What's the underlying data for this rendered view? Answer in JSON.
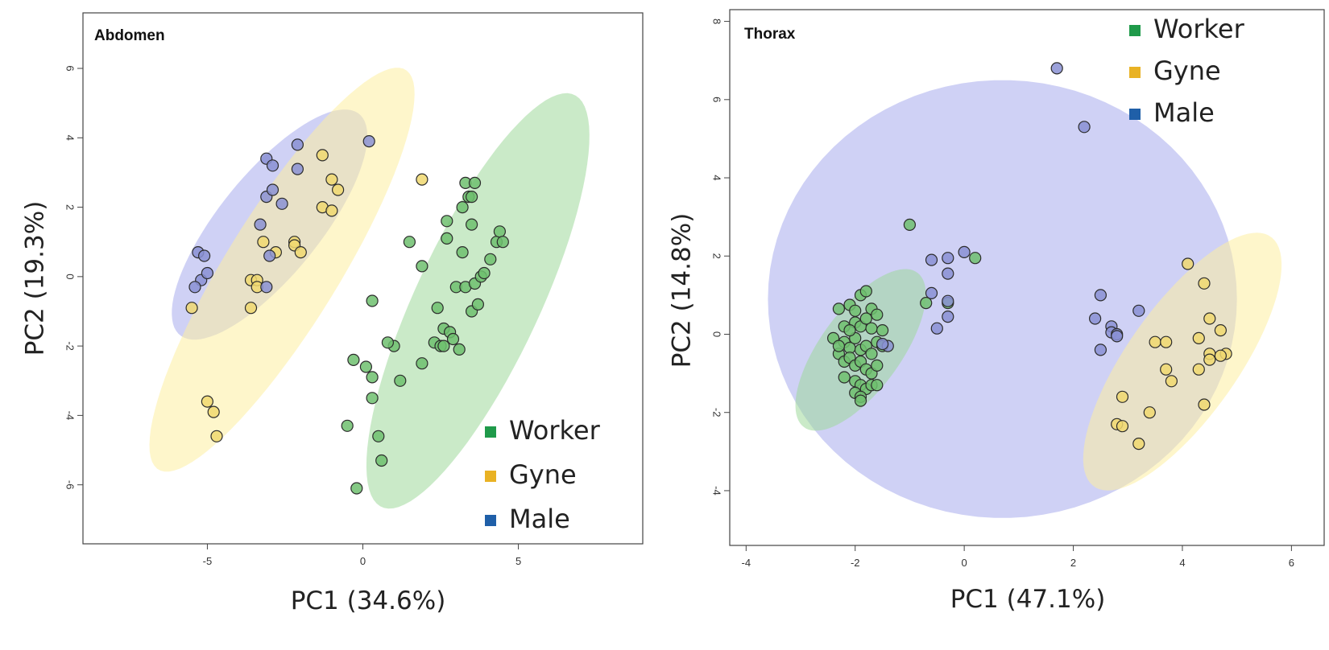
{
  "chart_data": [
    {
      "type": "scatter",
      "title": "Abdomen",
      "xlabel": "PC1 (34.6%)",
      "ylabel": "PC2 (19.3%)",
      "xlim": [
        -9.0,
        9.0
      ],
      "ylim": [
        -7.7,
        7.6
      ],
      "xticks": [
        -5,
        0,
        5
      ],
      "yticks": [
        -6,
        -4,
        -2,
        0,
        2,
        4,
        6
      ],
      "legend_position": "bottom-right",
      "ellipses": [
        {
          "series": "Male",
          "cx": -3.0,
          "cy": 1.5,
          "a": 4.3,
          "b": 1.55,
          "angle_deg": 47
        },
        {
          "series": "Gyne",
          "cx": -2.6,
          "cy": 0.2,
          "a": 7.0,
          "b": 1.75,
          "angle_deg": 55
        },
        {
          "series": "Worker",
          "cx": 3.7,
          "cy": -0.7,
          "a": 6.7,
          "b": 1.95,
          "angle_deg": 62
        }
      ],
      "series": [
        {
          "name": "Worker",
          "color": "#2aa84a",
          "fill": "#6fbf6f",
          "points": [
            [
              -0.2,
              -6.1
            ],
            [
              0.6,
              -5.3
            ],
            [
              0.5,
              -4.6
            ],
            [
              -0.5,
              -4.3
            ],
            [
              0.3,
              -3.5
            ],
            [
              1.2,
              -3.0
            ],
            [
              0.3,
              -2.9
            ],
            [
              0.1,
              -2.6
            ],
            [
              -0.3,
              -2.4
            ],
            [
              1.0,
              -2.0
            ],
            [
              0.8,
              -1.9
            ],
            [
              1.9,
              -2.5
            ],
            [
              2.3,
              -1.9
            ],
            [
              2.5,
              -2.0
            ],
            [
              2.6,
              -2.0
            ],
            [
              2.6,
              -1.5
            ],
            [
              2.8,
              -1.6
            ],
            [
              2.9,
              -1.8
            ],
            [
              3.1,
              -2.1
            ],
            [
              2.4,
              -0.9
            ],
            [
              3.0,
              -0.3
            ],
            [
              3.3,
              -0.3
            ],
            [
              3.5,
              -1.0
            ],
            [
              3.7,
              -0.8
            ],
            [
              3.6,
              -0.2
            ],
            [
              3.8,
              0.0
            ],
            [
              3.9,
              0.1
            ],
            [
              3.2,
              0.7
            ],
            [
              4.1,
              0.5
            ],
            [
              4.3,
              1.0
            ],
            [
              4.4,
              1.3
            ],
            [
              4.5,
              1.0
            ],
            [
              3.5,
              1.5
            ],
            [
              2.7,
              1.6
            ],
            [
              2.7,
              1.1
            ],
            [
              1.5,
              1.0
            ],
            [
              1.9,
              0.3
            ],
            [
              0.3,
              -0.7
            ],
            [
              3.2,
              2.0
            ],
            [
              3.4,
              2.3
            ],
            [
              3.5,
              2.3
            ],
            [
              3.3,
              2.7
            ],
            [
              3.6,
              2.7
            ]
          ]
        },
        {
          "name": "Gyne",
          "color": "#e6b82a",
          "fill": "#f0d870",
          "points": [
            [
              -5.5,
              -0.9
            ],
            [
              -5.0,
              -3.6
            ],
            [
              -4.8,
              -3.9
            ],
            [
              -4.7,
              -4.6
            ],
            [
              -3.6,
              -0.9
            ],
            [
              -3.6,
              -0.1
            ],
            [
              -3.4,
              -0.1
            ],
            [
              -3.4,
              -0.3
            ],
            [
              -3.2,
              1.0
            ],
            [
              -2.8,
              0.7
            ],
            [
              -2.2,
              1.0
            ],
            [
              -2.2,
              0.9
            ],
            [
              -2.0,
              0.7
            ],
            [
              -1.3,
              3.5
            ],
            [
              -1.3,
              2.0
            ],
            [
              -1.0,
              2.8
            ],
            [
              -1.0,
              1.9
            ],
            [
              -0.8,
              2.5
            ],
            [
              1.9,
              2.8
            ]
          ]
        },
        {
          "name": "Male",
          "color": "#3b4fb0",
          "fill": "#8a90d4",
          "points": [
            [
              -5.3,
              0.7
            ],
            [
              -5.1,
              0.6
            ],
            [
              -5.2,
              -0.1
            ],
            [
              -5.4,
              -0.3
            ],
            [
              -5.0,
              0.1
            ],
            [
              -3.3,
              1.5
            ],
            [
              -3.1,
              3.4
            ],
            [
              -2.9,
              3.2
            ],
            [
              -3.1,
              2.3
            ],
            [
              -2.9,
              2.5
            ],
            [
              -2.6,
              2.1
            ],
            [
              -3.0,
              0.6
            ],
            [
              -3.1,
              -0.3
            ],
            [
              -2.1,
              3.8
            ],
            [
              -2.1,
              3.1
            ],
            [
              0.2,
              3.9
            ]
          ]
        }
      ],
      "legend": [
        "Worker",
        "Gyne",
        "Male"
      ],
      "legend_colors": [
        "#1f9a4a",
        "#e9b224",
        "#1f5fa8"
      ]
    },
    {
      "type": "scatter",
      "title": "Thorax",
      "xlabel": "PC1 (47.1%)",
      "ylabel": "PC2 (14.8%)",
      "xlim": [
        -4.3,
        6.6
      ],
      "ylim": [
        -5.4,
        8.3
      ],
      "xticks": [
        -4,
        -2,
        0,
        2,
        4,
        6
      ],
      "yticks": [
        -4,
        -2,
        0,
        2,
        4,
        6,
        8
      ],
      "legend_position": "top-right",
      "ellipses": [
        {
          "series": "Male",
          "cx": 0.7,
          "cy": 0.9,
          "a": 4.3,
          "b": 5.6,
          "angle_deg": 0
        },
        {
          "series": "Worker",
          "cx": -1.9,
          "cy": -0.4,
          "a": 2.25,
          "b": 0.8,
          "angle_deg": 65
        },
        {
          "series": "Gyne",
          "cx": 4.0,
          "cy": -0.7,
          "a": 3.6,
          "b": 1.1,
          "angle_deg": 65
        }
      ],
      "series": [
        {
          "name": "Worker",
          "color": "#2aa84a",
          "fill": "#6fbf6f",
          "points": [
            [
              -2.3,
              0.65
            ],
            [
              -2.1,
              0.75
            ],
            [
              -2.0,
              0.6
            ],
            [
              -1.9,
              1.0
            ],
            [
              -1.8,
              1.1
            ],
            [
              -1.7,
              0.65
            ],
            [
              -1.6,
              0.5
            ],
            [
              -2.2,
              0.2
            ],
            [
              -2.0,
              0.3
            ],
            [
              -1.9,
              0.2
            ],
            [
              -1.7,
              0.15
            ],
            [
              -1.5,
              0.1
            ],
            [
              -2.4,
              -0.1
            ],
            [
              -2.2,
              -0.2
            ],
            [
              -2.1,
              -0.35
            ],
            [
              -2.0,
              -0.1
            ],
            [
              -1.9,
              -0.4
            ],
            [
              -1.8,
              -0.3
            ],
            [
              -1.7,
              -0.5
            ],
            [
              -1.6,
              -0.2
            ],
            [
              -1.5,
              -0.3
            ],
            [
              -2.3,
              -0.5
            ],
            [
              -2.2,
              -0.7
            ],
            [
              -2.1,
              -0.6
            ],
            [
              -2.0,
              -0.8
            ],
            [
              -1.9,
              -0.7
            ],
            [
              -1.8,
              -0.9
            ],
            [
              -1.7,
              -1.0
            ],
            [
              -1.6,
              -0.8
            ],
            [
              -2.2,
              -1.1
            ],
            [
              -2.0,
              -1.2
            ],
            [
              -1.9,
              -1.3
            ],
            [
              -1.8,
              -1.4
            ],
            [
              -1.7,
              -1.3
            ],
            [
              -2.0,
              -1.5
            ],
            [
              -1.9,
              -1.6
            ],
            [
              -1.9,
              -1.7
            ],
            [
              -1.6,
              -1.3
            ],
            [
              -2.1,
              0.1
            ],
            [
              -1.8,
              0.4
            ],
            [
              -2.3,
              -0.3
            ],
            [
              -0.7,
              0.8
            ],
            [
              -0.3,
              0.8
            ],
            [
              -1.0,
              2.8
            ],
            [
              0.2,
              1.95
            ]
          ]
        },
        {
          "name": "Gyne",
          "color": "#e6b82a",
          "fill": "#f0d870",
          "points": [
            [
              4.1,
              1.8
            ],
            [
              4.4,
              1.3
            ],
            [
              4.5,
              0.4
            ],
            [
              4.7,
              0.1
            ],
            [
              3.5,
              -0.2
            ],
            [
              3.7,
              -0.2
            ],
            [
              4.3,
              -0.1
            ],
            [
              4.5,
              -0.5
            ],
            [
              4.8,
              -0.5
            ],
            [
              4.7,
              -0.55
            ],
            [
              4.5,
              -0.65
            ],
            [
              4.3,
              -0.9
            ],
            [
              3.7,
              -0.9
            ],
            [
              3.8,
              -1.2
            ],
            [
              2.9,
              -1.6
            ],
            [
              4.4,
              -1.8
            ],
            [
              3.4,
              -2.0
            ],
            [
              2.8,
              -2.3
            ],
            [
              2.9,
              -2.35
            ],
            [
              3.2,
              -2.8
            ]
          ]
        },
        {
          "name": "Male",
          "color": "#3b4fb0",
          "fill": "#8a90d4",
          "points": [
            [
              1.7,
              6.8
            ],
            [
              2.2,
              5.3
            ],
            [
              -0.6,
              1.9
            ],
            [
              -0.3,
              1.95
            ],
            [
              -0.3,
              1.55
            ],
            [
              0.0,
              2.1
            ],
            [
              -0.6,
              1.05
            ],
            [
              -0.3,
              0.85
            ],
            [
              -0.3,
              0.45
            ],
            [
              -0.5,
              0.15
            ],
            [
              2.5,
              1.0
            ],
            [
              3.2,
              0.6
            ],
            [
              2.4,
              0.4
            ],
            [
              2.7,
              0.2
            ],
            [
              2.7,
              0.05
            ],
            [
              2.8,
              0.0
            ],
            [
              2.8,
              -0.05
            ],
            [
              2.5,
              -0.4
            ],
            [
              -1.4,
              -0.3
            ],
            [
              -1.5,
              -0.25
            ]
          ]
        }
      ],
      "legend": [
        "Worker",
        "Gyne",
        "Male"
      ],
      "legend_colors": [
        "#1f9a4a",
        "#e9b224",
        "#1f5fa8"
      ]
    }
  ]
}
